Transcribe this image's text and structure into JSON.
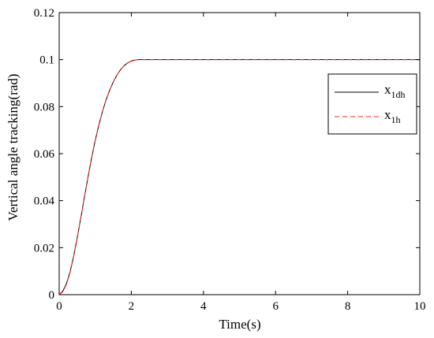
{
  "chart_data": {
    "type": "line",
    "title": "",
    "xlabel": "Time(s)",
    "ylabel": "Vertical angle tracking(rad)",
    "xlim": [
      0,
      10
    ],
    "ylim": [
      0,
      0.12
    ],
    "xticks": [
      "0",
      "2",
      "4",
      "6",
      "8",
      "10"
    ],
    "yticks": [
      "0",
      "0.02",
      "0.04",
      "0.06",
      "0.08",
      "0.1",
      "0.12"
    ],
    "grid": false,
    "legend_position": "upper-right",
    "series": [
      {
        "name_main": "x",
        "name_sub": "1dh",
        "color": "#000000",
        "style": "solid",
        "x": [
          0,
          0.1,
          0.2,
          0.3,
          0.4,
          0.5,
          0.6,
          0.7,
          0.8,
          0.9,
          1.0,
          1.1,
          1.2,
          1.3,
          1.4,
          1.5,
          1.6,
          1.7,
          1.8,
          1.9,
          2.0,
          2.1,
          2.2,
          2.3,
          2.4,
          2.5,
          3,
          4,
          5,
          6,
          7,
          8,
          9,
          10
        ],
        "y": [
          0,
          0.0015,
          0.0046,
          0.0096,
          0.0163,
          0.0242,
          0.0327,
          0.0415,
          0.0501,
          0.0582,
          0.0656,
          0.0722,
          0.0779,
          0.0829,
          0.087,
          0.0905,
          0.0934,
          0.0957,
          0.0974,
          0.0986,
          0.0994,
          0.0998,
          0.1,
          0.1,
          0.1,
          0.1,
          0.1,
          0.1,
          0.1,
          0.1,
          0.1,
          0.1,
          0.1,
          0.1
        ]
      },
      {
        "name_main": "x",
        "name_sub": "1h",
        "color": "#ff2020",
        "style": "dashed",
        "x": [
          0,
          0.1,
          0.2,
          0.3,
          0.4,
          0.5,
          0.6,
          0.7,
          0.8,
          0.9,
          1.0,
          1.1,
          1.2,
          1.3,
          1.4,
          1.5,
          1.6,
          1.7,
          1.8,
          1.9,
          2.0,
          2.1,
          2.2,
          2.3,
          2.4,
          2.5,
          3,
          4,
          5,
          6,
          7,
          8,
          9,
          10
        ],
        "y": [
          0,
          0.0012,
          0.0043,
          0.0093,
          0.0161,
          0.024,
          0.0327,
          0.0416,
          0.0502,
          0.0583,
          0.0657,
          0.0723,
          0.078,
          0.0829,
          0.087,
          0.0905,
          0.0934,
          0.0957,
          0.0974,
          0.0986,
          0.0994,
          0.0998,
          0.1,
          0.1,
          0.1,
          0.1,
          0.1,
          0.1,
          0.1,
          0.1,
          0.1,
          0.1,
          0.1,
          0.1
        ]
      }
    ]
  }
}
